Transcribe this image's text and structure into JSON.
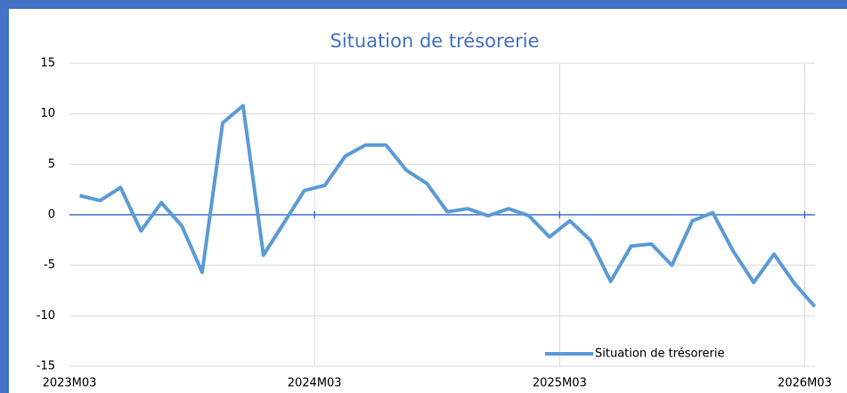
{
  "chart_data": {
    "type": "line",
    "title": "Situation de trésorerie",
    "categories": [
      "2023M03",
      null,
      null,
      null,
      null,
      null,
      null,
      null,
      null,
      null,
      null,
      null,
      "2024M03",
      null,
      null,
      null,
      null,
      null,
      null,
      null,
      null,
      null,
      null,
      null,
      "2025M03",
      null,
      null,
      null,
      null,
      null,
      null,
      null,
      null,
      null,
      null,
      null,
      "2026M03"
    ],
    "series": [
      {
        "name": "Situation de trésorerie",
        "color": "#5b9bd5",
        "values": [
          1.9,
          1.4,
          2.7,
          -1.6,
          1.2,
          -1.1,
          -5.7,
          9.1,
          10.8,
          -4.0,
          -0.8,
          2.4,
          2.9,
          5.8,
          6.9,
          6.9,
          4.4,
          3.1,
          0.3,
          0.6,
          -0.1,
          0.6,
          -0.1,
          -2.2,
          -0.6,
          -2.5,
          -6.6,
          -3.1,
          -2.9,
          -5.0,
          -0.6,
          0.2,
          -3.6,
          -6.7,
          -3.9,
          -6.8,
          -9.1
        ]
      }
    ],
    "ylim": [
      -15,
      15
    ],
    "yticks": [
      -15,
      -10,
      -5,
      0,
      5,
      10,
      15
    ],
    "grid": true,
    "legend": "lower right"
  }
}
